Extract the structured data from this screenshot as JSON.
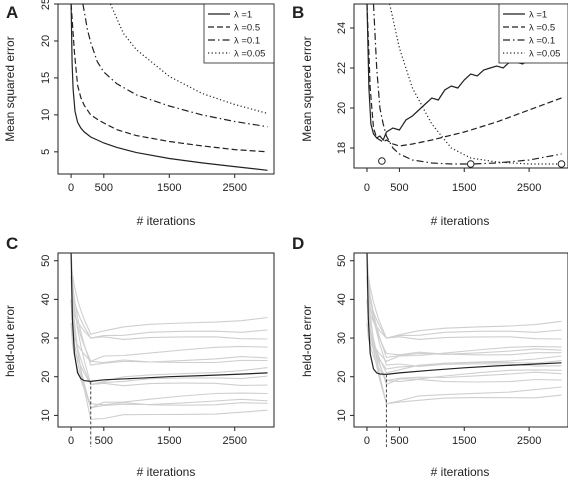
{
  "chart_data": [
    {
      "panel": "A",
      "type": "line",
      "xlabel": "# iterations",
      "ylabel": "Mean squared error",
      "xlim": [
        -200,
        3100
      ],
      "ylim": [
        2,
        25
      ],
      "xticks": [
        0,
        500,
        1500,
        2500
      ],
      "yticks": [
        5,
        10,
        15,
        20,
        25
      ],
      "grid": false,
      "legend": "top-right",
      "series": [
        {
          "name": "λ =1",
          "style": "solid",
          "color": "#222222",
          "x": [
            0,
            15,
            30,
            60,
            100,
            150,
            200,
            300,
            400,
            500,
            700,
            1000,
            1500,
            2000,
            2500,
            3000
          ],
          "y": [
            25,
            17,
            13.5,
            10.5,
            9,
            8.2,
            7.7,
            7,
            6.6,
            6.2,
            5.6,
            4.9,
            4.1,
            3.5,
            3,
            2.5
          ]
        },
        {
          "name": "λ =0.5",
          "style": "dashed",
          "color": "#222222",
          "x": [
            0,
            50,
            100,
            150,
            200,
            300,
            400,
            500,
            700,
            1000,
            1500,
            2000,
            2500,
            3000
          ],
          "y": [
            25,
            18.5,
            14,
            12.3,
            11.3,
            10,
            9.4,
            8.9,
            8,
            7.2,
            6.4,
            5.8,
            5.3,
            5
          ]
        },
        {
          "name": "λ =0.1",
          "style": "dashdot",
          "color": "#222222",
          "x": [
            180,
            250,
            300,
            400,
            500,
            700,
            1000,
            1500,
            2000,
            2500,
            3000
          ],
          "y": [
            25,
            21.5,
            19.8,
            17.2,
            15.8,
            14.2,
            12.7,
            11.2,
            10,
            9.1,
            8.4
          ]
        },
        {
          "name": "λ =0.05",
          "style": "dotted",
          "color": "#222222",
          "x": [
            600,
            800,
            1000,
            1500,
            2000,
            2500,
            3000
          ],
          "y": [
            25,
            21,
            18.8,
            15.2,
            12.9,
            11.4,
            10.2
          ]
        }
      ]
    },
    {
      "panel": "B",
      "type": "line",
      "xlabel": "# iterations",
      "ylabel": "Mean squared error",
      "xlim": [
        -200,
        3100
      ],
      "ylim": [
        17,
        25.2
      ],
      "xticks": [
        0,
        500,
        1500,
        2500
      ],
      "yticks": [
        18,
        20,
        22,
        24
      ],
      "grid": false,
      "legend": "top-right",
      "series": [
        {
          "name": "λ =1",
          "style": "solid",
          "color": "#222222",
          "x": [
            0,
            30,
            60,
            100,
            150,
            200,
            250,
            300,
            400,
            500,
            600,
            700,
            800,
            900,
            1000,
            1100,
            1200,
            1300,
            1400,
            1500,
            1600,
            1700,
            1800,
            1900,
            2000,
            2100,
            2200,
            2300,
            2400,
            2500
          ],
          "y": [
            25.2,
            21,
            19.2,
            18.7,
            18.5,
            18.6,
            18.4,
            18.8,
            19.0,
            18.9,
            19.4,
            19.6,
            19.9,
            20.2,
            20.5,
            20.4,
            20.9,
            21.1,
            21.0,
            21.4,
            21.7,
            21.6,
            21.9,
            22.0,
            22.1,
            22.0,
            22.3,
            22.3,
            22.2,
            22.4
          ]
        },
        {
          "name": "λ =0.5",
          "style": "dashed",
          "color": "#222222",
          "x": [
            0,
            50,
            100,
            150,
            200,
            250,
            300,
            400,
            500,
            700,
            1000,
            1500,
            2000,
            2500,
            3000
          ],
          "y": [
            25.2,
            21,
            19,
            18.5,
            18.4,
            18.3,
            18.4,
            18.2,
            18.1,
            18.2,
            18.4,
            18.8,
            19.3,
            19.9,
            20.5
          ]
        },
        {
          "name": "λ =0.1",
          "style": "dashdot",
          "color": "#222222",
          "x": [
            100,
            150,
            200,
            250,
            300,
            400,
            500,
            700,
            1000,
            1300,
            1600,
            2000,
            2500,
            3000
          ],
          "y": [
            25.2,
            22,
            20,
            19.2,
            18.6,
            18.0,
            17.7,
            17.4,
            17.25,
            17.2,
            17.2,
            17.25,
            17.4,
            17.7
          ]
        },
        {
          "name": "λ =0.05",
          "style": "dotted",
          "color": "#222222",
          "x": [
            350,
            500,
            700,
            1000,
            1300,
            1600,
            2000,
            2500,
            3000
          ],
          "y": [
            25.2,
            23,
            21,
            19.2,
            18.0,
            17.5,
            17.3,
            17.2,
            17.2
          ]
        }
      ],
      "markers": [
        {
          "x": 230,
          "y": 17.35
        },
        {
          "x": 1600,
          "y": 17.2
        },
        {
          "x": 3000,
          "y": 17.2
        }
      ]
    },
    {
      "panel": "C",
      "type": "line",
      "xlabel": "# iterations",
      "ylabel": "held-out error",
      "xlim": [
        -200,
        3100
      ],
      "ylim": [
        7,
        52
      ],
      "xticks": [
        0,
        500,
        1500,
        2500
      ],
      "yticks": [
        10,
        20,
        30,
        40,
        50
      ],
      "grid": false,
      "legend": "none",
      "vline_x": 300,
      "background_end_values": [
        35,
        32,
        30,
        28,
        25,
        24,
        22,
        20,
        18,
        16,
        14,
        13,
        11
      ],
      "series": [
        {
          "name": "",
          "style": "solid",
          "color": "#222222",
          "x": [
            0,
            20,
            50,
            100,
            150,
            200,
            300,
            500,
            1000,
            1500,
            2000,
            2500,
            3000
          ],
          "y": [
            52,
            35,
            26,
            21,
            19.5,
            19,
            18.8,
            19.2,
            19.6,
            20,
            20.3,
            20.6,
            21
          ]
        }
      ]
    },
    {
      "panel": "D",
      "type": "line",
      "xlabel": "# iterations",
      "ylabel": "held-out error",
      "xlim": [
        -200,
        3100
      ],
      "ylim": [
        7,
        52
      ],
      "xticks": [
        0,
        500,
        1500,
        2500
      ],
      "yticks": [
        10,
        20,
        30,
        40,
        50
      ],
      "grid": false,
      "legend": "none",
      "vline_x": 300,
      "background_end_values": [
        34,
        32,
        30,
        28,
        27,
        26,
        25,
        24,
        23,
        22,
        21,
        19,
        17,
        15
      ],
      "series": [
        {
          "name": "",
          "style": "solid",
          "color": "#222222",
          "x": [
            0,
            20,
            50,
            100,
            150,
            200,
            300,
            500,
            1000,
            1500,
            2000,
            2500,
            3000
          ],
          "y": [
            52,
            35,
            26,
            22,
            21,
            20.7,
            20.6,
            21,
            21.7,
            22.3,
            22.8,
            23.2,
            23.6
          ]
        }
      ]
    }
  ]
}
